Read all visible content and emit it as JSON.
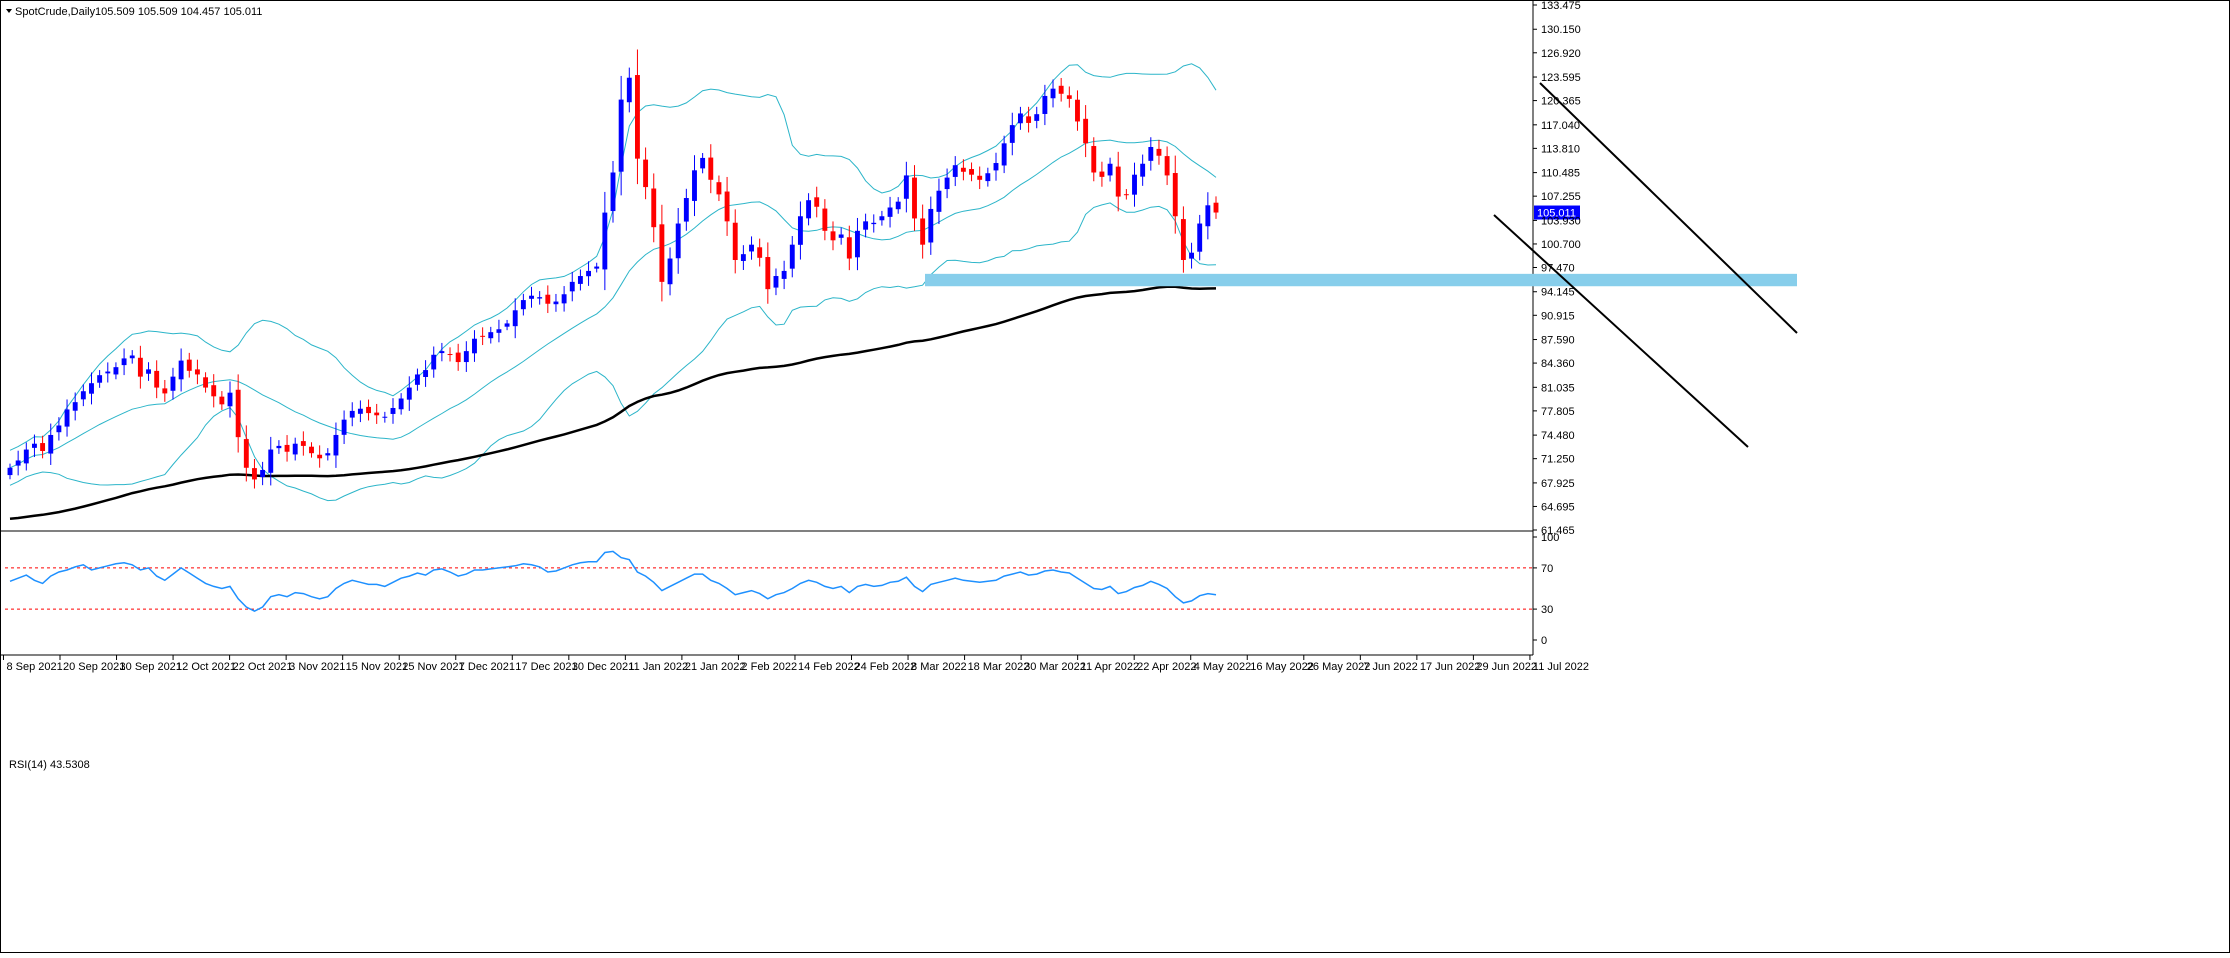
{
  "header": {
    "symbol": "SpotCrude,Daily",
    "ohlc": "105.509 105.509 104.457 105.011"
  },
  "rsi_header": {
    "label": "RSI(14) 43.5308"
  },
  "colors": {
    "bull": "#0000ff",
    "bear": "#ff0000",
    "bollinger": "#2cb5c9",
    "ma": "#000000",
    "support_zone": "#87ceeb",
    "rsi_line": "#1e90ff",
    "rsi_levels": "#ff0000",
    "price_tag_bg": "#0000ff"
  },
  "chart_data": [
    {
      "type": "candlestick",
      "title": "SpotCrude,Daily",
      "ylim": [
        61.465,
        133.475
      ],
      "y_ticks": [
        "133.475",
        "130.150",
        "126.920",
        "123.595",
        "120.365",
        "117.040",
        "113.810",
        "110.485",
        "107.255",
        "103.930",
        "100.700",
        "97.470",
        "94.145",
        "90.915",
        "87.590",
        "84.360",
        "81.035",
        "77.805",
        "74.480",
        "71.250",
        "67.925",
        "64.695",
        "61.465"
      ],
      "x_ticks": [
        "8 Sep 2021",
        "20 Sep 2021",
        "30 Sep 2021",
        "12 Oct 2021",
        "22 Oct 2021",
        "3 Nov 2021",
        "15 Nov 2021",
        "25 Nov 2021",
        "7 Dec 2021",
        "17 Dec 2021",
        "30 Dec 2021",
        "11 Jan 2022",
        "21 Jan 2022",
        "2 Feb 2022",
        "14 Feb 2022",
        "24 Feb 2022",
        "8 Mar 2022",
        "18 Mar 2022",
        "30 Mar 2022",
        "11 Apr 2022",
        "22 Apr 2022",
        "4 May 2022",
        "16 May 2022",
        "26 May 2022",
        "7 Jun 2022",
        "17 Jun 2022",
        "29 Jun 2022",
        "11 Jul 2022"
      ],
      "last_price": "105.011",
      "close_path": [
        70.0,
        71.0,
        72.5,
        73.3,
        72.3,
        74.5,
        75.8,
        78.0,
        79.0,
        80.5,
        81.6,
        82.7,
        83.2,
        83.8,
        85.0,
        85.4,
        82.5,
        83.5,
        81.0,
        80.2,
        82.5,
        84.7,
        83.3,
        82.8,
        81.0,
        79.8,
        78.7,
        80.3,
        74.2,
        70.0,
        68.4,
        69.7,
        72.5,
        73.0,
        72.2,
        73.3,
        73.0,
        72.0,
        71.3,
        72.0,
        74.5,
        76.6,
        77.8,
        78.1,
        77.5,
        77.2,
        77.0,
        78.2,
        79.5,
        81.0,
        82.8,
        83.4,
        85.5,
        86.0,
        85.5,
        84.5,
        86.0,
        87.7,
        88.0,
        88.6,
        89.0,
        89.8,
        91.6,
        93.0,
        93.6,
        93.4,
        92.5,
        92.8,
        93.8,
        95.5,
        96.3,
        97.0,
        97.6,
        105.0,
        110.5,
        120.5,
        123.5,
        112.4,
        108.5,
        103.0,
        95.5,
        98.7,
        103.5,
        107.0,
        110.8,
        112.5,
        109.5,
        107.5,
        103.8,
        98.5,
        99.3,
        100.6,
        98.8,
        94.5,
        96.3,
        97.0,
        100.6,
        104.5,
        106.7,
        105.8,
        102.5,
        101.2,
        102.0,
        98.7,
        102.5,
        103.8,
        103.6,
        104.5,
        105.7,
        106.5,
        110.1,
        104.2,
        100.6,
        105.5,
        108.0,
        109.8,
        111.5,
        110.6,
        110.2,
        109.5,
        110.4,
        111.8,
        114.5,
        117.0,
        118.6,
        117.3,
        118.5,
        121.0,
        122.0,
        121.3,
        120.6,
        117.5,
        114.5,
        110.5,
        109.9,
        111.7,
        107.2,
        107.5,
        110.2,
        111.7,
        114.0,
        112.8,
        110.1,
        104.5,
        98.5,
        99.5,
        103.5,
        106.0,
        105.011
      ]
    },
    {
      "type": "line",
      "title": "RSI(14) 43.5308",
      "ylim": [
        0,
        100
      ],
      "y_ticks": [
        "100",
        "70",
        "30",
        "0"
      ],
      "levels": [
        70,
        30
      ],
      "values": [
        57,
        60,
        63,
        58,
        55,
        62,
        66,
        68,
        71,
        73,
        68,
        70,
        72,
        74,
        75,
        73,
        68,
        70,
        62,
        58,
        64,
        70,
        65,
        60,
        55,
        52,
        50,
        52,
        40,
        32,
        28,
        32,
        42,
        44,
        42,
        46,
        45,
        42,
        40,
        42,
        50,
        55,
        58,
        56,
        54,
        54,
        52,
        56,
        60,
        62,
        65,
        63,
        68,
        69,
        66,
        62,
        64,
        68,
        68,
        69,
        70,
        71,
        72,
        74,
        73,
        71,
        66,
        67,
        70,
        73,
        75,
        76,
        76,
        85,
        86,
        80,
        78,
        66,
        62,
        56,
        48,
        52,
        56,
        60,
        64,
        64,
        58,
        55,
        50,
        44,
        46,
        48,
        45,
        40,
        44,
        46,
        50,
        55,
        58,
        56,
        52,
        50,
        52,
        46,
        52,
        54,
        52,
        53,
        56,
        57,
        61,
        52,
        47,
        54,
        56,
        58,
        60,
        58,
        57,
        56,
        57,
        58,
        62,
        64,
        66,
        63,
        64,
        67,
        68,
        66,
        65,
        60,
        55,
        50,
        49,
        52,
        45,
        47,
        51,
        53,
        57,
        54,
        50,
        42,
        36,
        38,
        43,
        45,
        44
      ]
    }
  ]
}
